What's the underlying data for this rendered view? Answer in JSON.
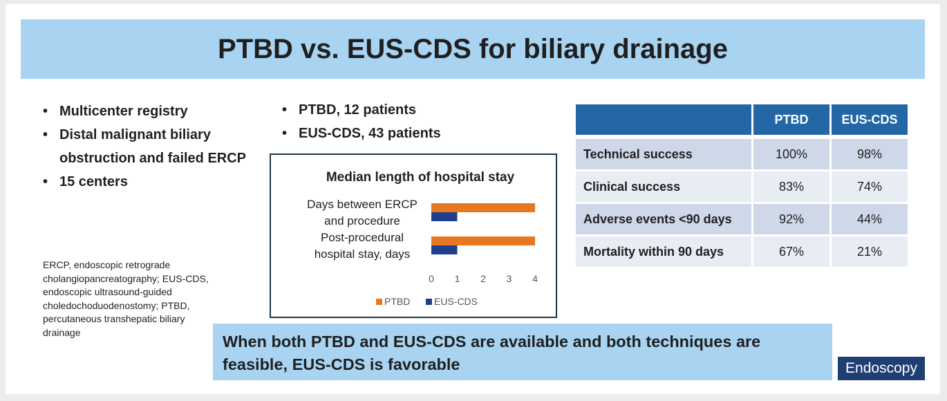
{
  "title": "PTBD vs. EUS-CDS for biliary drainage",
  "left_bullets": [
    "Multicenter registry",
    "Distal malignant biliary obstruction and failed ERCP",
    "15 centers"
  ],
  "mid_bullets": [
    "PTBD, 12 patients",
    "EUS-CDS, 43 patients"
  ],
  "footnote": "ERCP, endoscopic retrograde cholangiopancreatography; EUS-CDS, endoscopic ultrasound-guided choledochoduodenostomy; PTBD, percutaneous transhepatic biliary drainage",
  "table": {
    "headers": [
      "",
      "PTBD",
      "EUS-CDS"
    ],
    "rows": [
      {
        "label": "Technical success",
        "ptbd": "100%",
        "euscds": "98%"
      },
      {
        "label": "Clinical success",
        "ptbd": "83%",
        "euscds": "74%"
      },
      {
        "label": "Adverse events <90 days",
        "ptbd": "92%",
        "euscds": "44%"
      },
      {
        "label": "Mortality within 90 days",
        "ptbd": "67%",
        "euscds": "21%"
      }
    ]
  },
  "chart_data": {
    "type": "bar",
    "orientation": "horizontal",
    "title": "Median length of hospital stay",
    "categories": [
      [
        "Days between ERCP",
        "and procedure"
      ],
      [
        "Post-procedural",
        "hospital stay, days"
      ]
    ],
    "series": [
      {
        "name": "PTBD",
        "values": [
          4,
          4
        ],
        "color": "#e87722"
      },
      {
        "name": "EUS-CDS",
        "values": [
          1,
          1
        ],
        "color": "#1f3e8c"
      }
    ],
    "xticks": [
      0,
      1,
      2,
      3,
      4
    ],
    "xlim": [
      0,
      4
    ],
    "grid": false,
    "legend": "bottom"
  },
  "conclusion": "When both PTBD and EUS-CDS are available and both techniques are feasible, EUS-CDS is favorable",
  "journal": "Endoscopy"
}
